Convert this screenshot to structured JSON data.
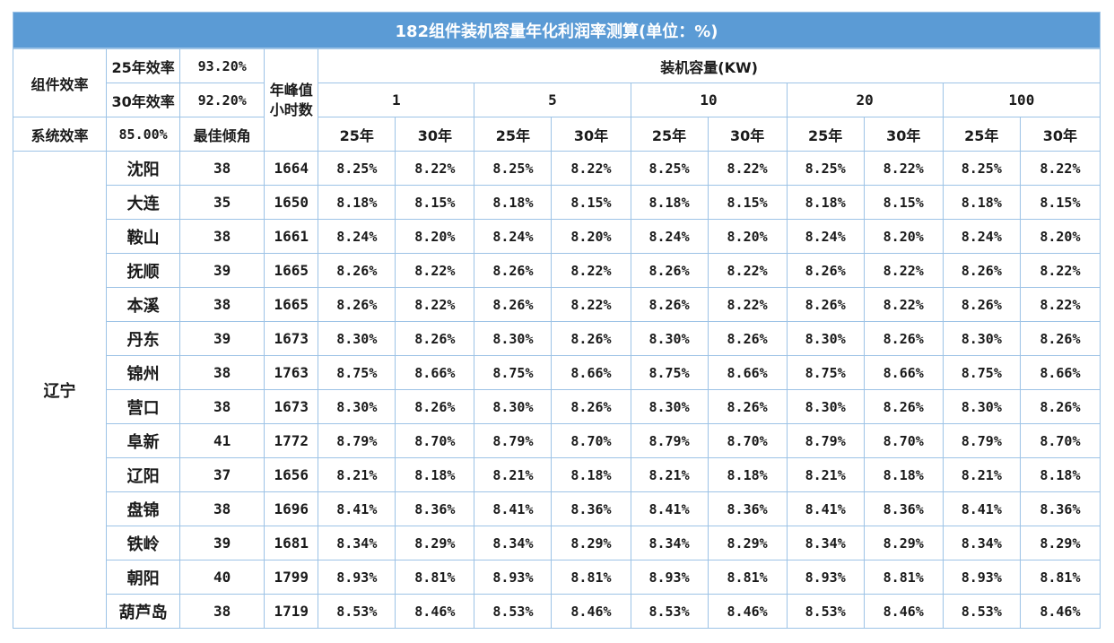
{
  "title": "182组件装机容量年化利润率测算(单位：%)",
  "params": {
    "module_eff_label": "组件效率",
    "eff25_label": "25年效率",
    "eff25_value": "93.20%",
    "eff30_label": "30年效率",
    "eff30_value": "92.20%",
    "sys_eff_label": "系统效率",
    "sys_eff_value": "85.00%",
    "best_tilt_label": "最佳倾角",
    "peak_hours_label": "年峰值小时数",
    "capacity_label": "装机容量(KW)"
  },
  "capacities": [
    "1",
    "5",
    "10",
    "20",
    "100"
  ],
  "year_labels": [
    "25年",
    "30年"
  ],
  "province": "辽宁",
  "rows": [
    {
      "city": "沈阳",
      "tilt": "38",
      "hours": "1664",
      "v25": "8.25%",
      "v30": "8.22%"
    },
    {
      "city": "大连",
      "tilt": "35",
      "hours": "1650",
      "v25": "8.18%",
      "v30": "8.15%"
    },
    {
      "city": "鞍山",
      "tilt": "38",
      "hours": "1661",
      "v25": "8.24%",
      "v30": "8.20%"
    },
    {
      "city": "抚顺",
      "tilt": "39",
      "hours": "1665",
      "v25": "8.26%",
      "v30": "8.22%"
    },
    {
      "city": "本溪",
      "tilt": "38",
      "hours": "1665",
      "v25": "8.26%",
      "v30": "8.22%"
    },
    {
      "city": "丹东",
      "tilt": "39",
      "hours": "1673",
      "v25": "8.30%",
      "v30": "8.26%"
    },
    {
      "city": "锦州",
      "tilt": "38",
      "hours": "1763",
      "v25": "8.75%",
      "v30": "8.66%"
    },
    {
      "city": "营口",
      "tilt": "38",
      "hours": "1673",
      "v25": "8.30%",
      "v30": "8.26%"
    },
    {
      "city": "阜新",
      "tilt": "41",
      "hours": "1772",
      "v25": "8.79%",
      "v30": "8.70%"
    },
    {
      "city": "辽阳",
      "tilt": "37",
      "hours": "1656",
      "v25": "8.21%",
      "v30": "8.18%"
    },
    {
      "city": "盘锦",
      "tilt": "38",
      "hours": "1696",
      "v25": "8.41%",
      "v30": "8.36%"
    },
    {
      "city": "铁岭",
      "tilt": "39",
      "hours": "1681",
      "v25": "8.34%",
      "v30": "8.29%"
    },
    {
      "city": "朝阳",
      "tilt": "40",
      "hours": "1799",
      "v25": "8.93%",
      "v30": "8.81%"
    },
    {
      "city": "葫芦岛",
      "tilt": "38",
      "hours": "1719",
      "v25": "8.53%",
      "v30": "8.46%"
    }
  ],
  "colors": {
    "title_bg": "#5b9bd5",
    "grid": "#9dc3e6"
  }
}
